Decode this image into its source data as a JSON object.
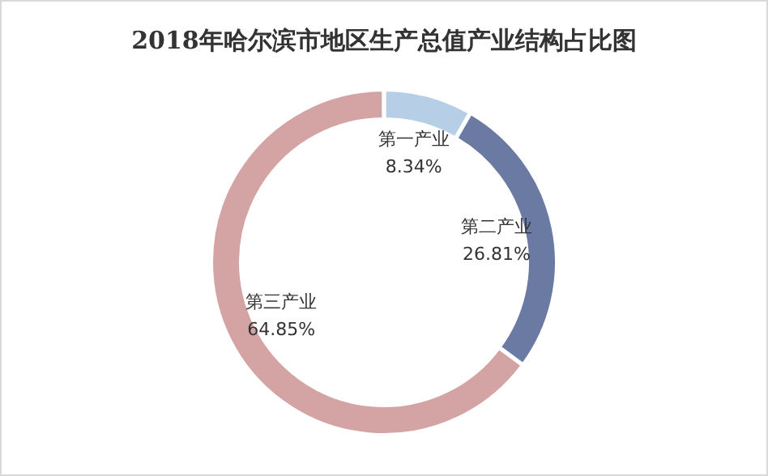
{
  "chart_data": {
    "type": "donut",
    "title": "2018年哈尔滨市地区生产总值产业结构占比图",
    "categories": [
      "第一产业",
      "第二产业",
      "第三产业"
    ],
    "values": [
      8.34,
      26.81,
      64.85
    ],
    "value_labels": [
      "8.34%",
      "26.81%",
      "64.85%"
    ],
    "colors": [
      "#b7cfe6",
      "#6b7aa3",
      "#d4a4a4"
    ]
  }
}
